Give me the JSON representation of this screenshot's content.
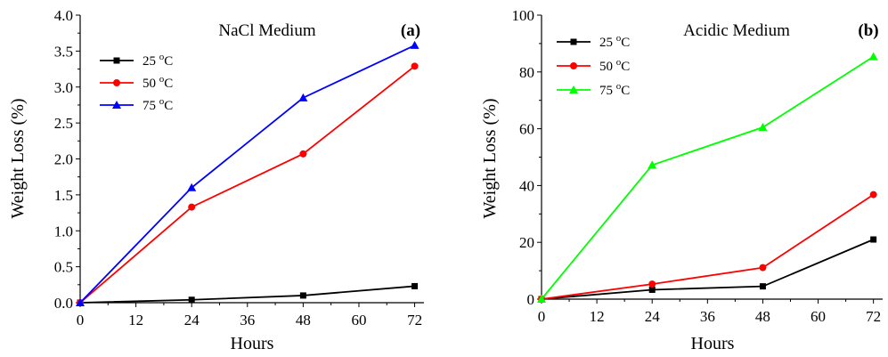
{
  "chart_data": [
    {
      "type": "line",
      "title": "NaCl Medium",
      "panel_label": "(a)",
      "xlabel": "Hours",
      "ylabel": "Weight Loss (%)",
      "x": [
        0,
        24,
        48,
        72
      ],
      "xlim": [
        0,
        74
      ],
      "ylim": [
        0,
        4.0
      ],
      "xticks": [
        "0",
        "12",
        "24",
        "36",
        "48",
        "60",
        "72"
      ],
      "yticks": [
        "0.0",
        "0.5",
        "1.0",
        "1.5",
        "2.0",
        "2.5",
        "3.0",
        "3.5",
        "4.0"
      ],
      "legend_position": "top-left",
      "series": [
        {
          "name": "25 °C",
          "label_base": "25 ",
          "label_sup": "o",
          "label_unit": "C",
          "color": "#000000",
          "marker": "square",
          "values": [
            0,
            0.04,
            0.1,
            0.23
          ]
        },
        {
          "name": "50 °C",
          "label_base": "50 ",
          "label_sup": "o",
          "label_unit": "C",
          "color": "#ff0000",
          "marker": "circle",
          "values": [
            0,
            1.33,
            2.07,
            3.29
          ]
        },
        {
          "name": "75 °C",
          "label_base": "75 ",
          "label_sup": "o",
          "label_unit": "C",
          "color": "#0000ff",
          "marker": "triangle",
          "values": [
            0,
            1.6,
            2.85,
            3.58
          ]
        }
      ]
    },
    {
      "type": "line",
      "title": "Acidic Medium",
      "panel_label": "(b)",
      "xlabel": "Hours",
      "ylabel": "Weight Loss (%)",
      "x": [
        0,
        24,
        48,
        72
      ],
      "xlim": [
        0,
        74
      ],
      "ylim": [
        0,
        100
      ],
      "xticks": [
        "0",
        "12",
        "24",
        "36",
        "48",
        "60",
        "72"
      ],
      "yticks": [
        "0",
        "20",
        "40",
        "60",
        "80",
        "100"
      ],
      "legend_position": "top-left",
      "series": [
        {
          "name": "25 °C",
          "label_base": "25 ",
          "label_sup": "o",
          "label_unit": "C",
          "color": "#000000",
          "marker": "square",
          "values": [
            0,
            3.3,
            4.5,
            21
          ]
        },
        {
          "name": "50 °C",
          "label_base": "50 ",
          "label_sup": "o",
          "label_unit": "C",
          "color": "#ff0000",
          "marker": "circle",
          "values": [
            0,
            5.3,
            11.1,
            36.8
          ]
        },
        {
          "name": "75 °C",
          "label_base": "75 ",
          "label_sup": "o",
          "label_unit": "C",
          "color": "#00ff00",
          "marker": "triangle",
          "values": [
            0,
            47.2,
            60.5,
            85.4
          ]
        }
      ]
    }
  ]
}
